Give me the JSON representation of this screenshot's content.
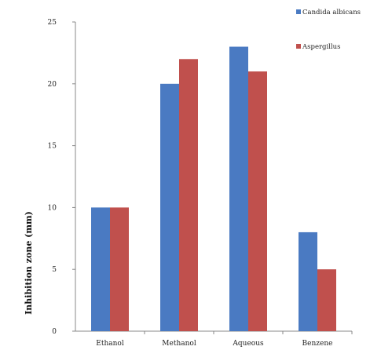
{
  "chart_data": {
    "type": "bar",
    "title": "",
    "xlabel": "",
    "ylabel": "Inhibition zone (mm)",
    "categories": [
      "Ethanol",
      "Methanol",
      "Aqueous",
      "Benzene"
    ],
    "series": [
      {
        "name": "Candida albicans",
        "values": [
          10,
          20,
          23,
          8
        ],
        "color": "#4a7ac2"
      },
      {
        "name": "Aspergillus",
        "values": [
          10,
          22,
          21,
          5
        ],
        "color": "#c0504d"
      }
    ],
    "ylim": [
      0,
      25
    ],
    "yticks": [
      0,
      5,
      10,
      15,
      20,
      25
    ],
    "grid": false,
    "legend_position": "top-right"
  }
}
